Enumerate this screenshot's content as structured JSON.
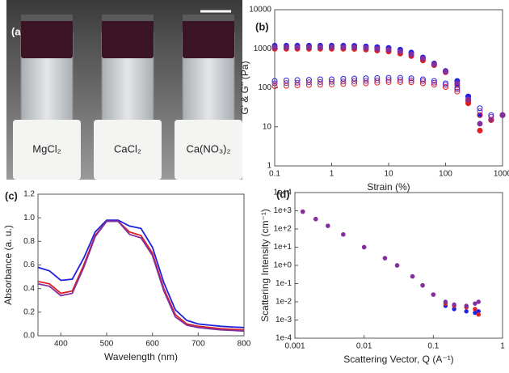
{
  "photo": {
    "label": "(a)",
    "vials": [
      "MgCl₂",
      "CaCl₂",
      "Ca(NO₃)₂"
    ]
  },
  "chart_data": [
    {
      "type": "scatter",
      "label": "(b)",
      "xlabel": "Strain (%)",
      "ylabel": "G' & G'' (Pa)",
      "xscale": "log",
      "yscale": "log",
      "xlim": [
        0.1,
        1000
      ],
      "ylim": [
        1,
        10000
      ],
      "xticks": [
        0.1,
        1,
        10,
        100,
        1000
      ],
      "yticks": [
        1,
        10,
        100,
        1000,
        10000
      ],
      "x": [
        0.1,
        0.16,
        0.25,
        0.4,
        0.63,
        1,
        1.6,
        2.5,
        4,
        6.3,
        10,
        16,
        25,
        40,
        63,
        100,
        160,
        250,
        400,
        630,
        1000
      ],
      "series": [
        {
          "color": "#2020e0",
          "filled": true,
          "values": [
            1200,
            1200,
            1200,
            1200,
            1200,
            1200,
            1200,
            1190,
            1150,
            1100,
            1050,
            950,
            800,
            600,
            420,
            270,
            150,
            60,
            20,
            15,
            20
          ]
        },
        {
          "color": "#e02020",
          "filled": true,
          "values": [
            1000,
            1000,
            1000,
            1000,
            1000,
            1000,
            1000,
            990,
            950,
            900,
            850,
            750,
            650,
            500,
            380,
            250,
            120,
            40,
            8,
            15,
            20
          ]
        },
        {
          "color": "#8030a0",
          "filled": true,
          "values": [
            1100,
            1100,
            1100,
            1100,
            1100,
            1100,
            1100,
            1090,
            1050,
            1000,
            950,
            850,
            720,
            560,
            400,
            260,
            130,
            50,
            12,
            15,
            20
          ]
        },
        {
          "color": "#2020e0",
          "filled": false,
          "values": [
            150,
            155,
            158,
            160,
            165,
            165,
            170,
            172,
            175,
            178,
            180,
            180,
            175,
            165,
            150,
            130,
            100,
            60,
            30,
            20,
            20
          ]
        },
        {
          "color": "#e02020",
          "filled": false,
          "values": [
            110,
            112,
            115,
            118,
            120,
            122,
            125,
            128,
            130,
            135,
            140,
            140,
            138,
            130,
            120,
            105,
            80,
            45,
            20,
            15,
            20
          ]
        },
        {
          "color": "#8030a0",
          "filled": false,
          "values": [
            130,
            132,
            135,
            138,
            140,
            142,
            145,
            148,
            150,
            155,
            158,
            158,
            155,
            148,
            135,
            118,
            90,
            50,
            25,
            18,
            20
          ]
        }
      ]
    },
    {
      "type": "line",
      "label": "(c)",
      "xlabel": "Wavelength (nm)",
      "ylabel": "Absorbance (a. u.)",
      "xlim": [
        350,
        800
      ],
      "ylim": [
        0,
        1.2
      ],
      "xticks": [
        400,
        500,
        600,
        700,
        800
      ],
      "yticks": [
        {
          "value": 0,
          "label": "0.0"
        },
        0.2,
        0.4,
        0.6,
        0.8,
        {
          "value": 1,
          "label": "1.0"
        },
        1.2
      ],
      "x": [
        350,
        375,
        400,
        425,
        450,
        475,
        500,
        525,
        550,
        575,
        600,
        625,
        650,
        675,
        700,
        725,
        750,
        775,
        800
      ],
      "series": [
        {
          "color": "#2020e0",
          "values": [
            0.58,
            0.55,
            0.47,
            0.48,
            0.66,
            0.88,
            0.98,
            0.98,
            0.93,
            0.91,
            0.75,
            0.45,
            0.22,
            0.13,
            0.1,
            0.09,
            0.08,
            0.075,
            0.07
          ]
        },
        {
          "color": "#e02020",
          "values": [
            0.46,
            0.44,
            0.36,
            0.38,
            0.6,
            0.85,
            0.97,
            0.97,
            0.88,
            0.85,
            0.7,
            0.4,
            0.18,
            0.1,
            0.08,
            0.07,
            0.06,
            0.055,
            0.05
          ]
        },
        {
          "color": "#8030a0",
          "values": [
            0.44,
            0.42,
            0.34,
            0.36,
            0.58,
            0.84,
            0.97,
            0.97,
            0.86,
            0.83,
            0.68,
            0.38,
            0.16,
            0.09,
            0.07,
            0.06,
            0.05,
            0.045,
            0.04
          ]
        }
      ]
    },
    {
      "type": "scatter",
      "label": "(d)",
      "xlabel": "Scattering Vector, Q (A⁻¹)",
      "ylabel": "Scattering Intensity (cm⁻¹)",
      "xscale": "log",
      "yscale": "log",
      "xlim": [
        0.001,
        1
      ],
      "ylim": [
        0.0001,
        10000
      ],
      "xticks": [
        0.001,
        0.01,
        0.1,
        1
      ],
      "yticks": [
        {
          "value": 0.0001,
          "label": "1e-4"
        },
        {
          "value": 0.001,
          "label": "1e-3"
        },
        {
          "value": 0.01,
          "label": "1e-2"
        },
        {
          "value": 0.1,
          "label": "1e-1"
        },
        {
          "value": 1,
          "label": "1e+0"
        },
        {
          "value": 10,
          "label": "1e+1"
        },
        {
          "value": 100,
          "label": "1e+2"
        },
        {
          "value": 1000,
          "label": "1e+3"
        },
        {
          "value": 10000,
          "label": "1e+4"
        }
      ],
      "x": [
        0.0013,
        0.002,
        0.003,
        0.005,
        0.01,
        0.02,
        0.03,
        0.05,
        0.07,
        0.1,
        0.15,
        0.2,
        0.3,
        0.4,
        0.45
      ],
      "series": [
        {
          "color": "#2020e0",
          "filled": true,
          "values": [
            900,
            350,
            150,
            50,
            10,
            2.5,
            1,
            0.25,
            0.08,
            0.025,
            0.006,
            0.004,
            0.003,
            0.0025,
            0.003
          ]
        },
        {
          "color": "#e02020",
          "filled": true,
          "values": [
            900,
            350,
            150,
            50,
            10,
            2.5,
            1,
            0.25,
            0.08,
            0.025,
            0.008,
            0.006,
            0.005,
            0.004,
            0.002
          ]
        },
        {
          "color": "#8030a0",
          "filled": true,
          "values": [
            900,
            350,
            150,
            50,
            10,
            2.5,
            1,
            0.25,
            0.08,
            0.025,
            0.01,
            0.007,
            0.006,
            0.008,
            0.01
          ]
        }
      ]
    }
  ]
}
